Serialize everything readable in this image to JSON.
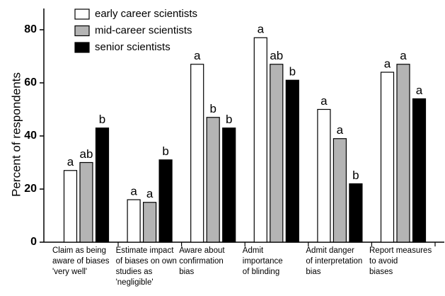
{
  "chart_data": {
    "type": "bar",
    "ylabel": "Percent of respondents",
    "categories": [
      [
        "Claim as being",
        "aware of biases",
        "'very well'"
      ],
      [
        "Estimate impact",
        "of biases on own",
        "studies as",
        "'negligible'"
      ],
      [
        "Aware about",
        "confirmation",
        "bias"
      ],
      [
        "Admit",
        "importance",
        "of blinding"
      ],
      [
        "Admit danger",
        "of interpretation",
        "bias"
      ],
      [
        "Report measures",
        "to avoid",
        "biases"
      ]
    ],
    "series": [
      {
        "name": "early career scientists",
        "color": "#ffffff",
        "values": [
          27,
          16,
          67,
          77,
          50,
          64
        ],
        "letters": [
          "a",
          "a",
          "a",
          "a",
          "a",
          "a"
        ]
      },
      {
        "name": "mid-career scientists",
        "color": "#b4b4b4",
        "values": [
          30,
          15,
          47,
          67,
          39,
          67
        ],
        "letters": [
          "ab",
          "a",
          "b",
          "ab",
          "a",
          "a"
        ]
      },
      {
        "name": "senior scientists",
        "color": "#000000",
        "values": [
          43,
          31,
          43,
          61,
          22,
          54
        ],
        "letters": [
          "b",
          "b",
          "b",
          "b",
          "b",
          "a"
        ]
      }
    ],
    "ylim": [
      0,
      88
    ],
    "yticks": [
      0,
      20,
      40,
      60,
      80
    ],
    "grid": false,
    "legend": "top-left"
  }
}
